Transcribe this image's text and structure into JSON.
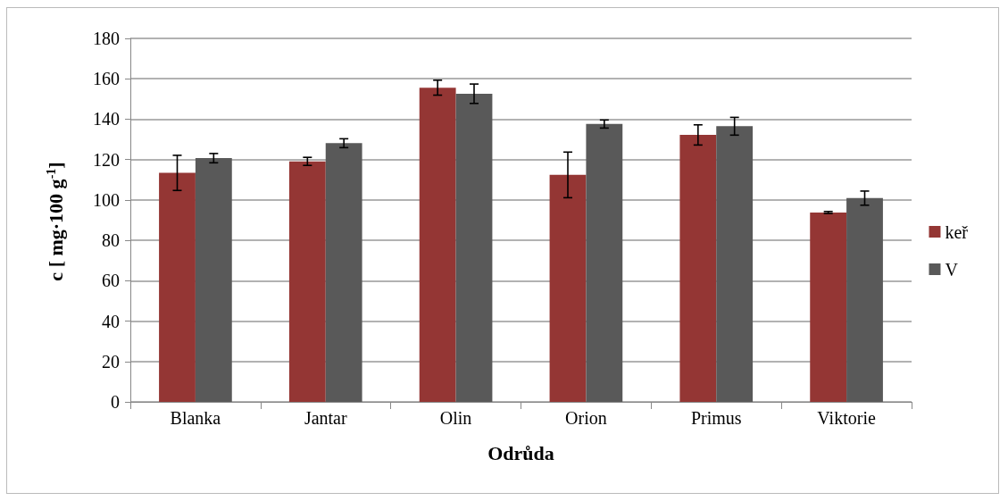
{
  "chart_data": {
    "type": "bar",
    "xlabel": "Odrůda",
    "ylabel": "c [ mg·100 g$^{-1}$]",
    "categories": [
      "Blanka",
      "Jantar",
      "Olin",
      "Orion",
      "Primus",
      "Viktorie"
    ],
    "series": [
      {
        "name": "keř",
        "color": "#943634",
        "values": [
          113.4,
          119.1,
          155.6,
          112.4,
          132.2,
          93.8
        ],
        "errors": [
          8.7,
          2,
          3.7,
          11.3,
          5,
          0.5
        ]
      },
      {
        "name": "V",
        "color": "#595959",
        "values": [
          120.7,
          128.1,
          152.6,
          137.6,
          136.5,
          100.9
        ],
        "errors": [
          2.3,
          2.2,
          4.8,
          2,
          4.4,
          3.5
        ]
      }
    ],
    "ylim": [
      0,
      180
    ],
    "yticks": [
      0,
      20,
      40,
      60,
      80,
      100,
      120,
      140,
      160,
      180
    ],
    "grid": "y",
    "legend": "right"
  }
}
